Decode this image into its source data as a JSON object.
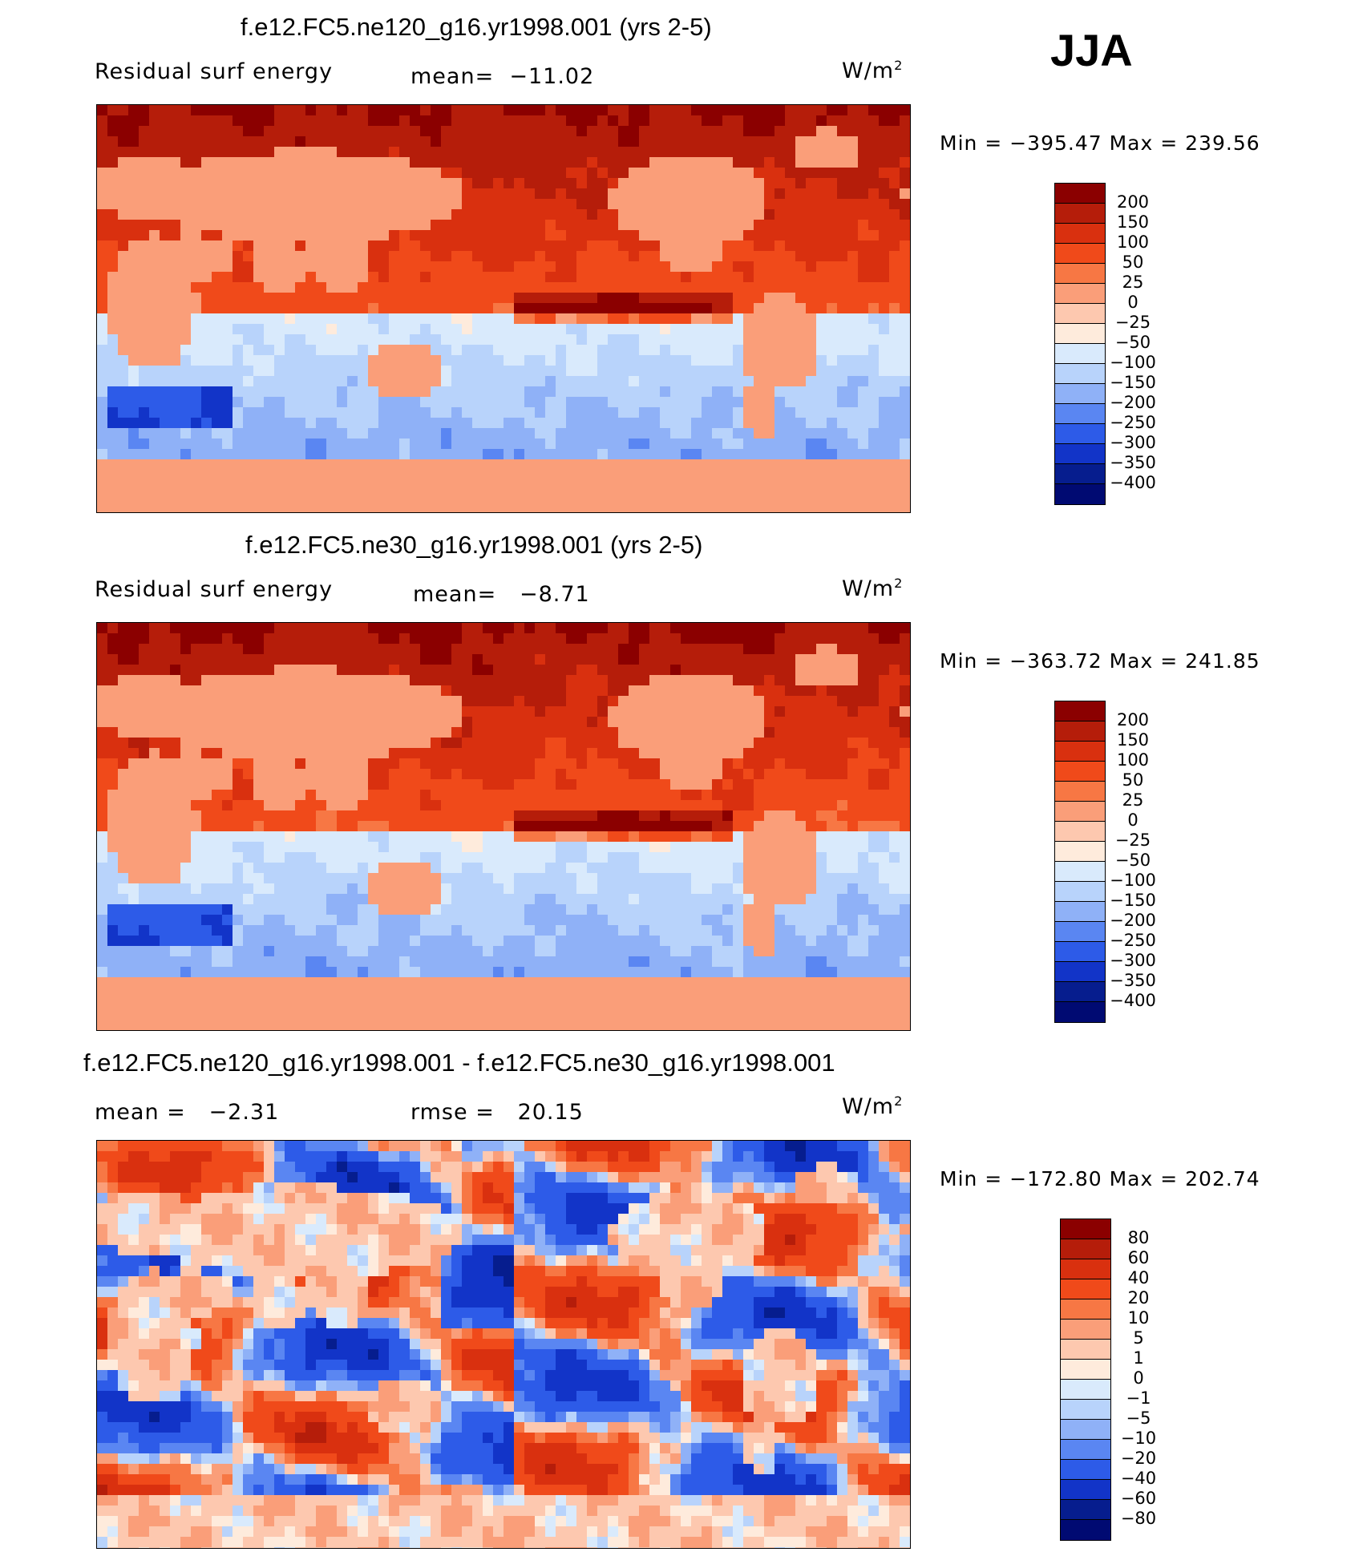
{
  "season": "JJA",
  "chart_data": [
    {
      "type": "heatmap",
      "title": "f.e12.FC5.ne120_g16.yr1998.001 (yrs 2-5)",
      "variable": "Residual surf energy",
      "mean_label": "mean=",
      "mean_value": "−11.02",
      "units": "W/m",
      "units_sup": "2",
      "min_label": "Min =",
      "min_value": "−395.47",
      "max_label": "Max =",
      "max_value": "239.56",
      "levels": [
        "200",
        "150",
        "100",
        "50",
        "25",
        "0",
        "−25",
        "−50",
        "−100",
        "−150",
        "−200",
        "−250",
        "−300",
        "−350",
        "−400"
      ],
      "colors": [
        "#8b0000",
        "#b51d0a",
        "#d9300f",
        "#f04a1a",
        "#f77744",
        "#fa9e79",
        "#fdc8af",
        "#feebdc",
        "#d9eafc",
        "#b8d3fb",
        "#8fb1f7",
        "#5a86f2",
        "#2d5be8",
        "#1234c8",
        "#061d8e",
        "#000a72"
      ]
    },
    {
      "type": "heatmap",
      "title": "f.e12.FC5.ne30_g16.yr1998.001 (yrs 2-5)",
      "variable": "Residual surf energy",
      "mean_label": "mean=",
      "mean_value": "−8.71",
      "units": "W/m",
      "units_sup": "2",
      "min_label": "Min =",
      "min_value": "−363.72",
      "max_label": "Max =",
      "max_value": "241.85",
      "levels": [
        "200",
        "150",
        "100",
        "50",
        "25",
        "0",
        "−25",
        "−50",
        "−100",
        "−150",
        "−200",
        "−250",
        "−300",
        "−350",
        "−400"
      ],
      "colors": [
        "#8b0000",
        "#b51d0a",
        "#d9300f",
        "#f04a1a",
        "#f77744",
        "#fa9e79",
        "#fdc8af",
        "#feebdc",
        "#d9eafc",
        "#b8d3fb",
        "#8fb1f7",
        "#5a86f2",
        "#2d5be8",
        "#1234c8",
        "#061d8e",
        "#000a72"
      ]
    },
    {
      "type": "heatmap",
      "title": "f.e12.FC5.ne120_g16.yr1998.001 - f.e12.FC5.ne30_g16.yr1998.001",
      "mean_label": "mean =",
      "mean_value": "−2.31",
      "rmse_label": "rmse =",
      "rmse_value": "20.15",
      "units": "W/m",
      "units_sup": "2",
      "min_label": "Min =",
      "min_value": "−172.80",
      "max_label": "Max =",
      "max_value": "202.74",
      "levels": [
        "80",
        "60",
        "40",
        "20",
        "10",
        "5",
        "1",
        "0",
        "−1",
        "−5",
        "−10",
        "−20",
        "−40",
        "−60",
        "−80"
      ],
      "colors": [
        "#8b0000",
        "#b51d0a",
        "#d9300f",
        "#f04a1a",
        "#f77744",
        "#fa9e79",
        "#fdc8af",
        "#feebdc",
        "#d9eafc",
        "#b8d3fb",
        "#8fb1f7",
        "#5a86f2",
        "#2d5be8",
        "#1234c8",
        "#061d8e",
        "#000a72"
      ]
    }
  ]
}
